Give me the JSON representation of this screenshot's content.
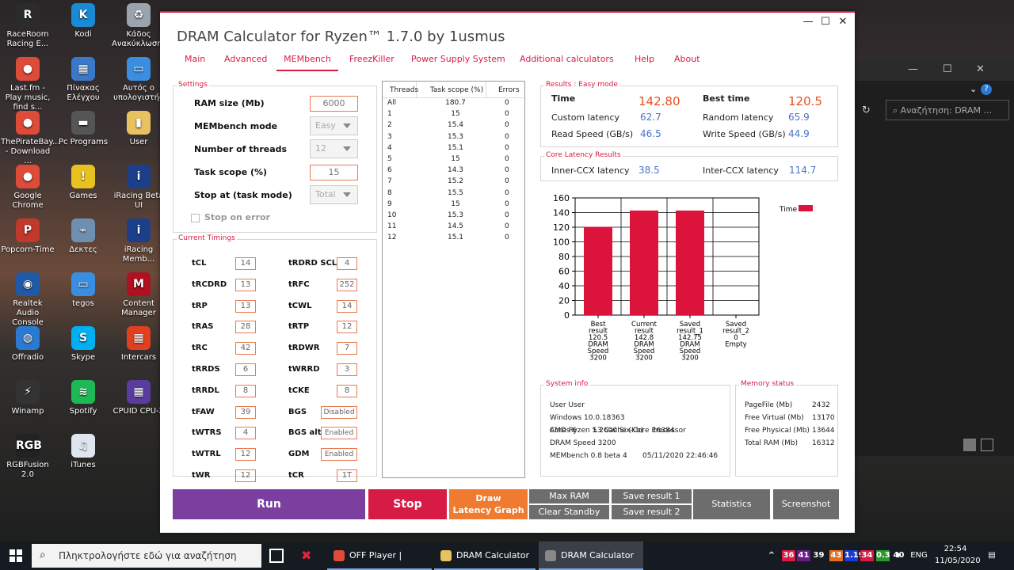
{
  "desktop_icons": [
    {
      "label": "RaceRoom Racing E...",
      "icon": "raceroom-icon",
      "color": "#2b2b2b",
      "glyph": "R"
    },
    {
      "label": "Kodi",
      "icon": "kodi-icon",
      "color": "#1a8ad4",
      "glyph": "K"
    },
    {
      "label": "Κάδος Ανακύκλωσης",
      "icon": "recycle-bin-icon",
      "color": "#9aa4ad",
      "glyph": "♻"
    },
    {
      "label": "Last.fm - Play music, find s...",
      "icon": "chrome-icon",
      "color": "#dd4b39",
      "glyph": "●"
    },
    {
      "label": "Πίνακας Ελέγχου",
      "icon": "control-panel-icon",
      "color": "#3a78c9",
      "glyph": "▦"
    },
    {
      "label": "Αυτός ο υπολογιστής",
      "icon": "computer-icon",
      "color": "#3a8ee0",
      "glyph": "▭"
    },
    {
      "label": "ThePirateBay... - Download ...",
      "icon": "chrome-icon",
      "color": "#dd4b39",
      "glyph": "●"
    },
    {
      "label": "Pc Programs",
      "icon": "folder-icon",
      "color": "#555",
      "glyph": "▬"
    },
    {
      "label": "User",
      "icon": "user-folder-icon",
      "color": "#e8c160",
      "glyph": "▮"
    },
    {
      "label": "Google Chrome",
      "icon": "chrome-icon",
      "color": "#dd4b39",
      "glyph": "●"
    },
    {
      "label": "Games",
      "icon": "warning-icon",
      "color": "#e8c320",
      "glyph": "!"
    },
    {
      "label": "iRacing Beta UI",
      "icon": "iracing-icon",
      "color": "#1c3f8c",
      "glyph": "i"
    },
    {
      "label": "Popcorn-Time",
      "icon": "popcorn-icon",
      "color": "#c0392b",
      "glyph": "P"
    },
    {
      "label": "Δεκτες",
      "icon": "satellite-icon",
      "color": "#6f8fb0",
      "glyph": "⌁"
    },
    {
      "label": "iRacing Memb...",
      "icon": "iracing-icon",
      "color": "#1c3f8c",
      "glyph": "i"
    },
    {
      "label": "Realtek Audio Console",
      "icon": "realtek-icon",
      "color": "#1f5aa8",
      "glyph": "◉"
    },
    {
      "label": "tegos",
      "icon": "computer-icon",
      "color": "#3a8ee0",
      "glyph": "▭"
    },
    {
      "label": "Content Manager",
      "icon": "content-manager-icon",
      "color": "#b01020",
      "glyph": "M"
    },
    {
      "label": "Offradio",
      "icon": "globe-icon",
      "color": "#2a7ad0",
      "glyph": "◍"
    },
    {
      "label": "Skype",
      "icon": "skype-icon",
      "color": "#00aff0",
      "glyph": "S"
    },
    {
      "label": "Intercars",
      "icon": "intercars-icon",
      "color": "#e04020",
      "glyph": "▦"
    },
    {
      "label": "Winamp",
      "icon": "winamp-icon",
      "color": "#333",
      "glyph": "⚡"
    },
    {
      "label": "Spotify",
      "icon": "spotify-icon",
      "color": "#1db954",
      "glyph": "≋"
    },
    {
      "label": "CPUID CPU-Z",
      "icon": "cpuz-icon",
      "color": "#5a3ca0",
      "glyph": "▦"
    },
    {
      "label": "RGBFusion 2.0",
      "icon": "rgbfusion-icon",
      "color": "#222",
      "glyph": "RGB"
    },
    {
      "label": "iTunes",
      "icon": "itunes-icon",
      "color": "#e0e6f0",
      "glyph": "♫"
    }
  ],
  "bg_window": {
    "search_placeholder": "Αναζήτηση: DRAM ..."
  },
  "app": {
    "title": "DRAM Calculator for Ryzen™ 1.7.0 by 1usmus",
    "tabs": [
      "Main",
      "Advanced",
      "MEMbench",
      "FreezKiller",
      "Power Supply System",
      "Additional calculators",
      "Help",
      "About"
    ],
    "active_tab": "MEMbench",
    "settings": {
      "group_label": "Settings",
      "ram_size_label": "RAM size (Mb)",
      "ram_size_value": "6000",
      "mode_label": "MEMbench mode",
      "mode_value": "Easy",
      "threads_label": "Number of threads",
      "threads_value": "12",
      "scope_label": "Task scope (%)",
      "scope_value": "15",
      "stop_label": "Stop at (task mode)",
      "stop_value": "Total",
      "stop_on_error_label": "Stop on error"
    },
    "timings": {
      "group_label": "Current Timings",
      "left": [
        [
          "tCL",
          "14"
        ],
        [
          "tRCDRD",
          "13"
        ],
        [
          "tRP",
          "13"
        ],
        [
          "tRAS",
          "28"
        ],
        [
          "tRC",
          "42"
        ],
        [
          "tRRDS",
          "6"
        ],
        [
          "tRRDL",
          "8"
        ],
        [
          "tFAW",
          "39"
        ],
        [
          "tWTRS",
          "4"
        ],
        [
          "tWTRL",
          "12"
        ],
        [
          "tWR",
          "12"
        ]
      ],
      "right": [
        [
          "tRDRD SCL",
          "4"
        ],
        [
          "tRFC",
          "252"
        ],
        [
          "tCWL",
          "14"
        ],
        [
          "tRTP",
          "12"
        ],
        [
          "tRDWR",
          "7"
        ],
        [
          "tWRRD",
          "3"
        ],
        [
          "tCKE",
          "8"
        ],
        [
          "BGS",
          "Disabled"
        ],
        [
          "BGS alt",
          "Enabled"
        ],
        [
          "GDM",
          "Enabled"
        ],
        [
          "tCR",
          "1T"
        ]
      ]
    },
    "threads_table": {
      "headers": [
        "Threads",
        "Task scope (%)",
        "Errors"
      ],
      "rows": [
        [
          "All",
          "180.7",
          "0"
        ],
        [
          "1",
          "15",
          "0"
        ],
        [
          "2",
          "15.4",
          "0"
        ],
        [
          "3",
          "15.3",
          "0"
        ],
        [
          "4",
          "15.1",
          "0"
        ],
        [
          "5",
          "15",
          "0"
        ],
        [
          "6",
          "14.3",
          "0"
        ],
        [
          "7",
          "15.2",
          "0"
        ],
        [
          "8",
          "15.5",
          "0"
        ],
        [
          "9",
          "15",
          "0"
        ],
        [
          "10",
          "15.3",
          "0"
        ],
        [
          "11",
          "14.5",
          "0"
        ],
        [
          "12",
          "15.1",
          "0"
        ]
      ]
    },
    "results": {
      "group_label": "Results : Easy mode",
      "time_label": "Time",
      "time_value": "142.80",
      "best_label": "Best time",
      "best_value": "120.5",
      "custom_latency_label": "Custom latency",
      "custom_latency_value": "62.7",
      "random_latency_label": "Random latency",
      "random_latency_value": "65.9",
      "read_label": "Read Speed (GB/s)",
      "read_value": "46.5",
      "write_label": "Write Speed (GB/s)",
      "write_value": "44.9"
    },
    "core_latency": {
      "group_label": "Core Latency Results",
      "inner_label": "Inner-CCX latency",
      "inner_value": "38.5",
      "inter_label": "Inter-CCX latency",
      "inter_value": "114.7"
    },
    "system_info": {
      "group_label": "System info",
      "lines": [
        "User User",
        "Windows 10.0.18363",
        "AMD Ryzen 5 2600 Six-Core Processor"
      ],
      "cores_label": "Cores 6",
      "l3_label": "L3 Cache (Kb)",
      "l3_value": "16384",
      "dram_speed": "DRAM Speed 3200",
      "version": "MEMbench 0.8 beta 4",
      "date": "05/11/2020 22:46:46"
    },
    "memory_status": {
      "group_label": "Memory status",
      "rows": [
        [
          "PageFile (Mb)",
          "2432"
        ],
        [
          "Free Virtual (Mb)",
          "13170"
        ],
        [
          "Free Physical (Mb)",
          "13644"
        ],
        [
          "Total RAM (Mb)",
          "16312"
        ]
      ]
    },
    "buttons": {
      "run": "Run",
      "stop": "Stop",
      "draw_line1": "Draw",
      "draw_line2": "Latency Graph",
      "max_ram": "Max RAM",
      "clear_standby": "Clear Standby",
      "save1": "Save result 1",
      "save2": "Save result 2",
      "statistics": "Statistics",
      "screenshot": "Screenshot"
    },
    "colors": {
      "accent": "#d81b45",
      "run": "#7b3fa0",
      "stop": "#d81b45",
      "draw": "#f07a30",
      "bar": "#dc143c"
    }
  },
  "chart_data": {
    "type": "bar",
    "categories": [
      [
        "Best",
        "result",
        "120.5",
        "DRAM",
        "Speed",
        "3200"
      ],
      [
        "Current",
        "result",
        "142.8",
        "DRAM",
        "Speed",
        "3200"
      ],
      [
        "Saved",
        "result_1",
        "142.75",
        "DRAM",
        "Speed",
        "3200"
      ],
      [
        "Saved",
        "result_2",
        "0",
        "Empty"
      ]
    ],
    "values": [
      120.5,
      142.8,
      142.75,
      0
    ],
    "legend": "Time",
    "ylim": [
      0,
      160
    ],
    "yticks": [
      0,
      20,
      40,
      60,
      80,
      100,
      120,
      140,
      160
    ],
    "grid": true,
    "legend_position": "top-right"
  },
  "taskbar": {
    "search_placeholder": "Πληκτρολογήστε εδώ για αναζήτηση",
    "apps": [
      [
        "OFF Player | Offradi...",
        "chrome-icon"
      ],
      [
        "DRAM Calculator f...",
        "folder-icon"
      ],
      [
        "DRAM Calculator f...",
        "dram-calculator-icon"
      ]
    ],
    "tray_items": [
      [
        "36",
        "#d81b45"
      ],
      [
        "41",
        "#6a1a8a"
      ],
      [
        "39",
        "#161b22"
      ],
      [
        "43",
        "#e07020"
      ],
      [
        "1.19",
        "#1a3ad0"
      ],
      [
        "34",
        "#d81b45"
      ],
      [
        "0.3",
        "#2a9a2a"
      ],
      [
        "40",
        "#161b22"
      ]
    ],
    "language": "ENG",
    "time": "22:54",
    "date": "11/05/2020"
  }
}
